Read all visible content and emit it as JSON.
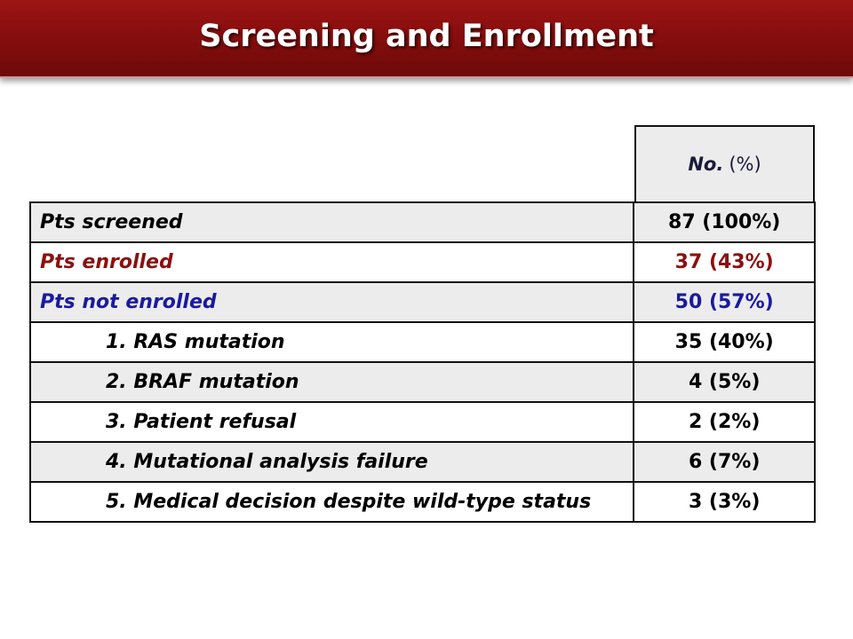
{
  "title": "Screening and Enrollment",
  "colors": {
    "title_bar": "#8a0e0e",
    "enrolled_text": "#8b1010",
    "not_enrolled_text": "#1a1aa0",
    "shaded_row": "#ececec"
  },
  "table": {
    "header": {
      "no": "No.",
      "pct": "(%)"
    },
    "rows": [
      {
        "label": "Pts screened",
        "value": "87 (100%)"
      },
      {
        "label": "Pts enrolled",
        "value": "37 (43%)"
      },
      {
        "label": "Pts not enrolled",
        "value": "50 (57%)"
      },
      {
        "label": "1. RAS mutation",
        "value": "35 (40%)"
      },
      {
        "label": "2. BRAF mutation",
        "value": "4 (5%)"
      },
      {
        "label": "3. Patient refusal",
        "value": "2 (2%)"
      },
      {
        "label": "4. Mutational analysis failure",
        "value": "6 (7%)"
      },
      {
        "label": "5. Medical decision despite wild-type status",
        "value": "3 (3%)"
      }
    ]
  }
}
